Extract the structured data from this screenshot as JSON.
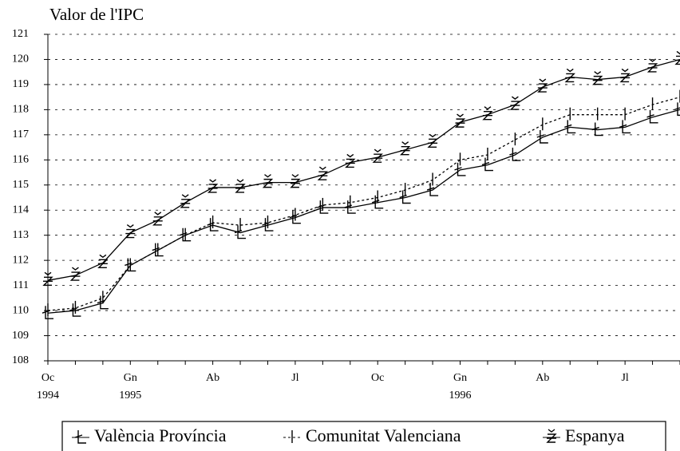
{
  "chart_data": {
    "type": "line",
    "title": "Valor de l'IPC",
    "categories": [
      "Oc",
      null,
      null,
      "Gn",
      null,
      null,
      "Ab",
      null,
      null,
      "Jl",
      null,
      null,
      "Oc",
      null,
      null,
      "Gn",
      null,
      null,
      "Ab",
      null,
      null,
      "Jl",
      null,
      null
    ],
    "x_sublabels": [
      "1994",
      null,
      null,
      "1995",
      null,
      null,
      null,
      null,
      null,
      null,
      null,
      null,
      null,
      null,
      null,
      "1996",
      null,
      null,
      null,
      null,
      null,
      null,
      null,
      null
    ],
    "series": [
      {
        "name": "València Província",
        "color": "#000000",
        "style": "solid",
        "marker": "L",
        "values": [
          109.9,
          110.0,
          110.3,
          111.8,
          112.4,
          113.0,
          113.4,
          113.1,
          113.4,
          113.7,
          114.1,
          114.1,
          114.3,
          114.5,
          114.8,
          115.6,
          115.8,
          116.2,
          116.9,
          117.3,
          117.2,
          117.3,
          117.7,
          118.0
        ]
      },
      {
        "name": "Comunitat Valenciana",
        "color": "#000000",
        "style": "dashed",
        "marker": "I",
        "values": [
          110.0,
          110.1,
          110.5,
          111.8,
          112.4,
          113.0,
          113.5,
          113.4,
          113.5,
          113.8,
          114.2,
          114.3,
          114.5,
          114.8,
          115.2,
          116.0,
          116.2,
          116.8,
          117.4,
          117.8,
          117.8,
          117.8,
          118.2,
          118.5
        ]
      },
      {
        "name": "Espanya",
        "color": "#000000",
        "style": "solid",
        "marker": "Z",
        "values": [
          111.2,
          111.4,
          111.9,
          113.1,
          113.6,
          114.3,
          114.9,
          114.9,
          115.1,
          115.1,
          115.4,
          115.9,
          116.1,
          116.4,
          116.7,
          117.5,
          117.8,
          118.2,
          118.9,
          119.3,
          119.2,
          119.3,
          119.7,
          120.0
        ]
      }
    ],
    "ylim": [
      108,
      121
    ],
    "yticks": [
      108,
      109,
      110,
      111,
      112,
      113,
      114,
      115,
      116,
      117,
      118,
      119,
      120,
      121
    ],
    "grid": true,
    "legend": "bottom"
  }
}
